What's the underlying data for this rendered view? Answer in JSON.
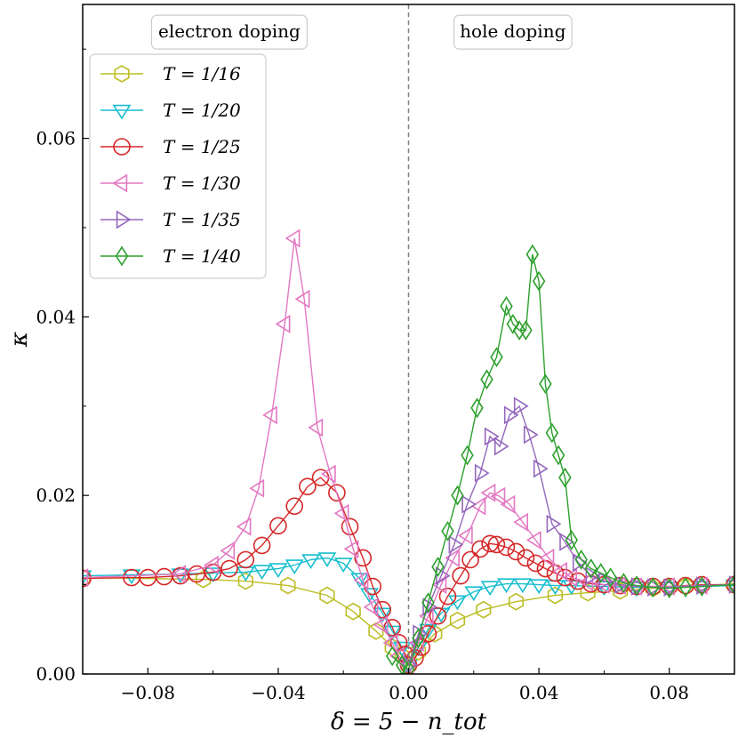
{
  "chart_data": {
    "type": "line",
    "title": "",
    "xlabel": "δ = 5 − n_tot",
    "ylabel": "κ",
    "xlim": [
      -0.1,
      0.1
    ],
    "ylim": [
      0.0,
      0.075
    ],
    "xticks": [
      -0.08,
      -0.04,
      0.0,
      0.04,
      0.08
    ],
    "xtick_labels": [
      "−0.08",
      "−0.04",
      "0.00",
      "0.04",
      "0.08"
    ],
    "yticks": [
      0.0,
      0.02,
      0.04,
      0.06
    ],
    "ytick_labels": [
      "0.00",
      "0.02",
      "0.04",
      "0.06"
    ],
    "vline_x": 0.0,
    "legend_position": "top-left",
    "annotations": [
      {
        "text": "electron doping",
        "x": -0.055,
        "y": 0.072
      },
      {
        "text": "hole doping",
        "x": 0.032,
        "y": 0.072
      }
    ],
    "series": [
      {
        "name": "T = 1/16",
        "color": "#bcbd22",
        "marker": "hexagon",
        "x": [
          -0.1,
          -0.063,
          -0.05,
          -0.037,
          -0.025,
          -0.017,
          -0.01,
          -0.005,
          -0.002,
          0.0,
          0.003,
          0.008,
          0.015,
          0.023,
          0.033,
          0.045,
          0.055,
          0.065,
          0.075,
          0.085,
          0.1
        ],
        "y": [
          0.0108,
          0.0106,
          0.0104,
          0.0099,
          0.0088,
          0.007,
          0.0048,
          0.003,
          0.002,
          0.001,
          0.0025,
          0.0045,
          0.006,
          0.0072,
          0.0081,
          0.0088,
          0.0091,
          0.0093,
          0.0096,
          0.0098,
          0.0101
        ]
      },
      {
        "name": "T = 1/20",
        "color": "#17becf",
        "marker": "triangle-down",
        "x": [
          -0.1,
          -0.085,
          -0.07,
          -0.06,
          -0.05,
          -0.045,
          -0.04,
          -0.035,
          -0.03,
          -0.025,
          -0.02,
          -0.015,
          -0.012,
          -0.008,
          -0.005,
          -0.002,
          0.0,
          0.003,
          0.006,
          0.01,
          0.015,
          0.02,
          0.025,
          0.03,
          0.035,
          0.04,
          0.045,
          0.05,
          0.06,
          0.07,
          0.08,
          0.09,
          0.1
        ],
        "y": [
          0.011,
          0.0111,
          0.0112,
          0.0113,
          0.0114,
          0.0116,
          0.0118,
          0.0122,
          0.0128,
          0.013,
          0.0124,
          0.0107,
          0.009,
          0.0068,
          0.0048,
          0.003,
          0.001,
          0.003,
          0.005,
          0.0068,
          0.0082,
          0.0092,
          0.0098,
          0.0101,
          0.0101,
          0.01,
          0.0099,
          0.0099,
          0.0098,
          0.0097,
          0.0097,
          0.0098,
          0.0099
        ]
      },
      {
        "name": "T = 1/25",
        "color": "#d62728",
        "marker": "circle",
        "x": [
          -0.1,
          -0.085,
          -0.08,
          -0.075,
          -0.07,
          -0.065,
          -0.06,
          -0.055,
          -0.05,
          -0.045,
          -0.04,
          -0.035,
          -0.031,
          -0.027,
          -0.022,
          -0.018,
          -0.014,
          -0.011,
          -0.008,
          -0.005,
          -0.003,
          -0.001,
          0.0,
          0.002,
          0.004,
          0.006,
          0.009,
          0.012,
          0.016,
          0.019,
          0.022,
          0.025,
          0.027,
          0.03,
          0.033,
          0.036,
          0.039,
          0.042,
          0.045,
          0.048,
          0.052,
          0.056,
          0.06,
          0.065,
          0.07,
          0.075,
          0.08,
          0.085,
          0.09,
          0.1
        ],
        "y": [
          0.0107,
          0.0108,
          0.0108,
          0.0109,
          0.011,
          0.0112,
          0.0114,
          0.0118,
          0.0128,
          0.0144,
          0.0166,
          0.0188,
          0.021,
          0.022,
          0.0203,
          0.0165,
          0.013,
          0.0098,
          0.0072,
          0.0052,
          0.0035,
          0.0022,
          0.001,
          0.0018,
          0.003,
          0.0045,
          0.0065,
          0.0087,
          0.011,
          0.0128,
          0.014,
          0.0146,
          0.0145,
          0.0142,
          0.0137,
          0.013,
          0.0124,
          0.0118,
          0.0113,
          0.0108,
          0.0104,
          0.0101,
          0.01,
          0.0099,
          0.0098,
          0.0098,
          0.0098,
          0.0099,
          0.01,
          0.01
        ]
      },
      {
        "name": "T = 1/30",
        "color": "#e377c2",
        "marker": "triangle-left",
        "x": [
          -0.1,
          -0.07,
          -0.06,
          -0.055,
          -0.05,
          -0.046,
          -0.042,
          -0.038,
          -0.035,
          -0.032,
          -0.028,
          -0.024,
          -0.02,
          -0.017,
          -0.014,
          -0.011,
          -0.008,
          -0.005,
          -0.003,
          0.0,
          0.003,
          0.006,
          0.01,
          0.014,
          0.018,
          0.022,
          0.025,
          0.028,
          0.031,
          0.035,
          0.039,
          0.043,
          0.047,
          0.05,
          0.055,
          0.06,
          0.065,
          0.07,
          0.08,
          0.09,
          0.1
        ],
        "y": [
          0.0108,
          0.0112,
          0.0122,
          0.0138,
          0.0165,
          0.0208,
          0.029,
          0.0392,
          0.0488,
          0.042,
          0.0276,
          0.0224,
          0.018,
          0.014,
          0.0105,
          0.0075,
          0.0055,
          0.0035,
          0.002,
          0.001,
          0.0035,
          0.0065,
          0.01,
          0.013,
          0.0155,
          0.0188,
          0.0203,
          0.0199,
          0.019,
          0.017,
          0.015,
          0.013,
          0.0115,
          0.0108,
          0.0103,
          0.01,
          0.0099,
          0.0098,
          0.0098,
          0.0099,
          0.01
        ]
      },
      {
        "name": "T = 1/35",
        "color": "#9467bd",
        "marker": "triangle-right",
        "x": [
          0.0,
          0.003,
          0.006,
          0.01,
          0.014,
          0.018,
          0.022,
          0.025,
          0.028,
          0.031,
          0.034,
          0.037,
          0.04,
          0.044,
          0.048,
          0.052,
          0.056,
          0.06,
          0.065,
          0.07,
          0.075,
          0.08,
          0.09,
          0.1
        ],
        "y": [
          0.001,
          0.0045,
          0.0075,
          0.011,
          0.0145,
          0.019,
          0.0225,
          0.0266,
          0.0255,
          0.029,
          0.03,
          0.0268,
          0.023,
          0.0168,
          0.0148,
          0.0125,
          0.011,
          0.0104,
          0.01,
          0.0098,
          0.0097,
          0.0097,
          0.0099,
          0.01
        ]
      },
      {
        "name": "T = 1/40",
        "color": "#2ca02c",
        "marker": "diamond",
        "x": [
          -0.005,
          -0.002,
          0.0,
          0.003,
          0.006,
          0.009,
          0.012,
          0.015,
          0.018,
          0.021,
          0.024,
          0.027,
          0.03,
          0.032,
          0.034,
          0.036,
          0.038,
          0.04,
          0.042,
          0.044,
          0.046,
          0.048,
          0.05,
          0.053,
          0.056,
          0.059,
          0.062,
          0.066,
          0.07,
          0.075,
          0.08,
          0.085,
          0.09,
          0.1
        ],
        "y": [
          0.002,
          0.001,
          0.0005,
          0.004,
          0.008,
          0.012,
          0.016,
          0.02,
          0.0245,
          0.0298,
          0.033,
          0.0355,
          0.0412,
          0.0392,
          0.0385,
          0.0385,
          0.047,
          0.044,
          0.0325,
          0.027,
          0.0245,
          0.022,
          0.015,
          0.0128,
          0.0118,
          0.0113,
          0.0108,
          0.0102,
          0.0099,
          0.0097,
          0.0096,
          0.0097,
          0.0098,
          0.01
        ]
      }
    ]
  }
}
